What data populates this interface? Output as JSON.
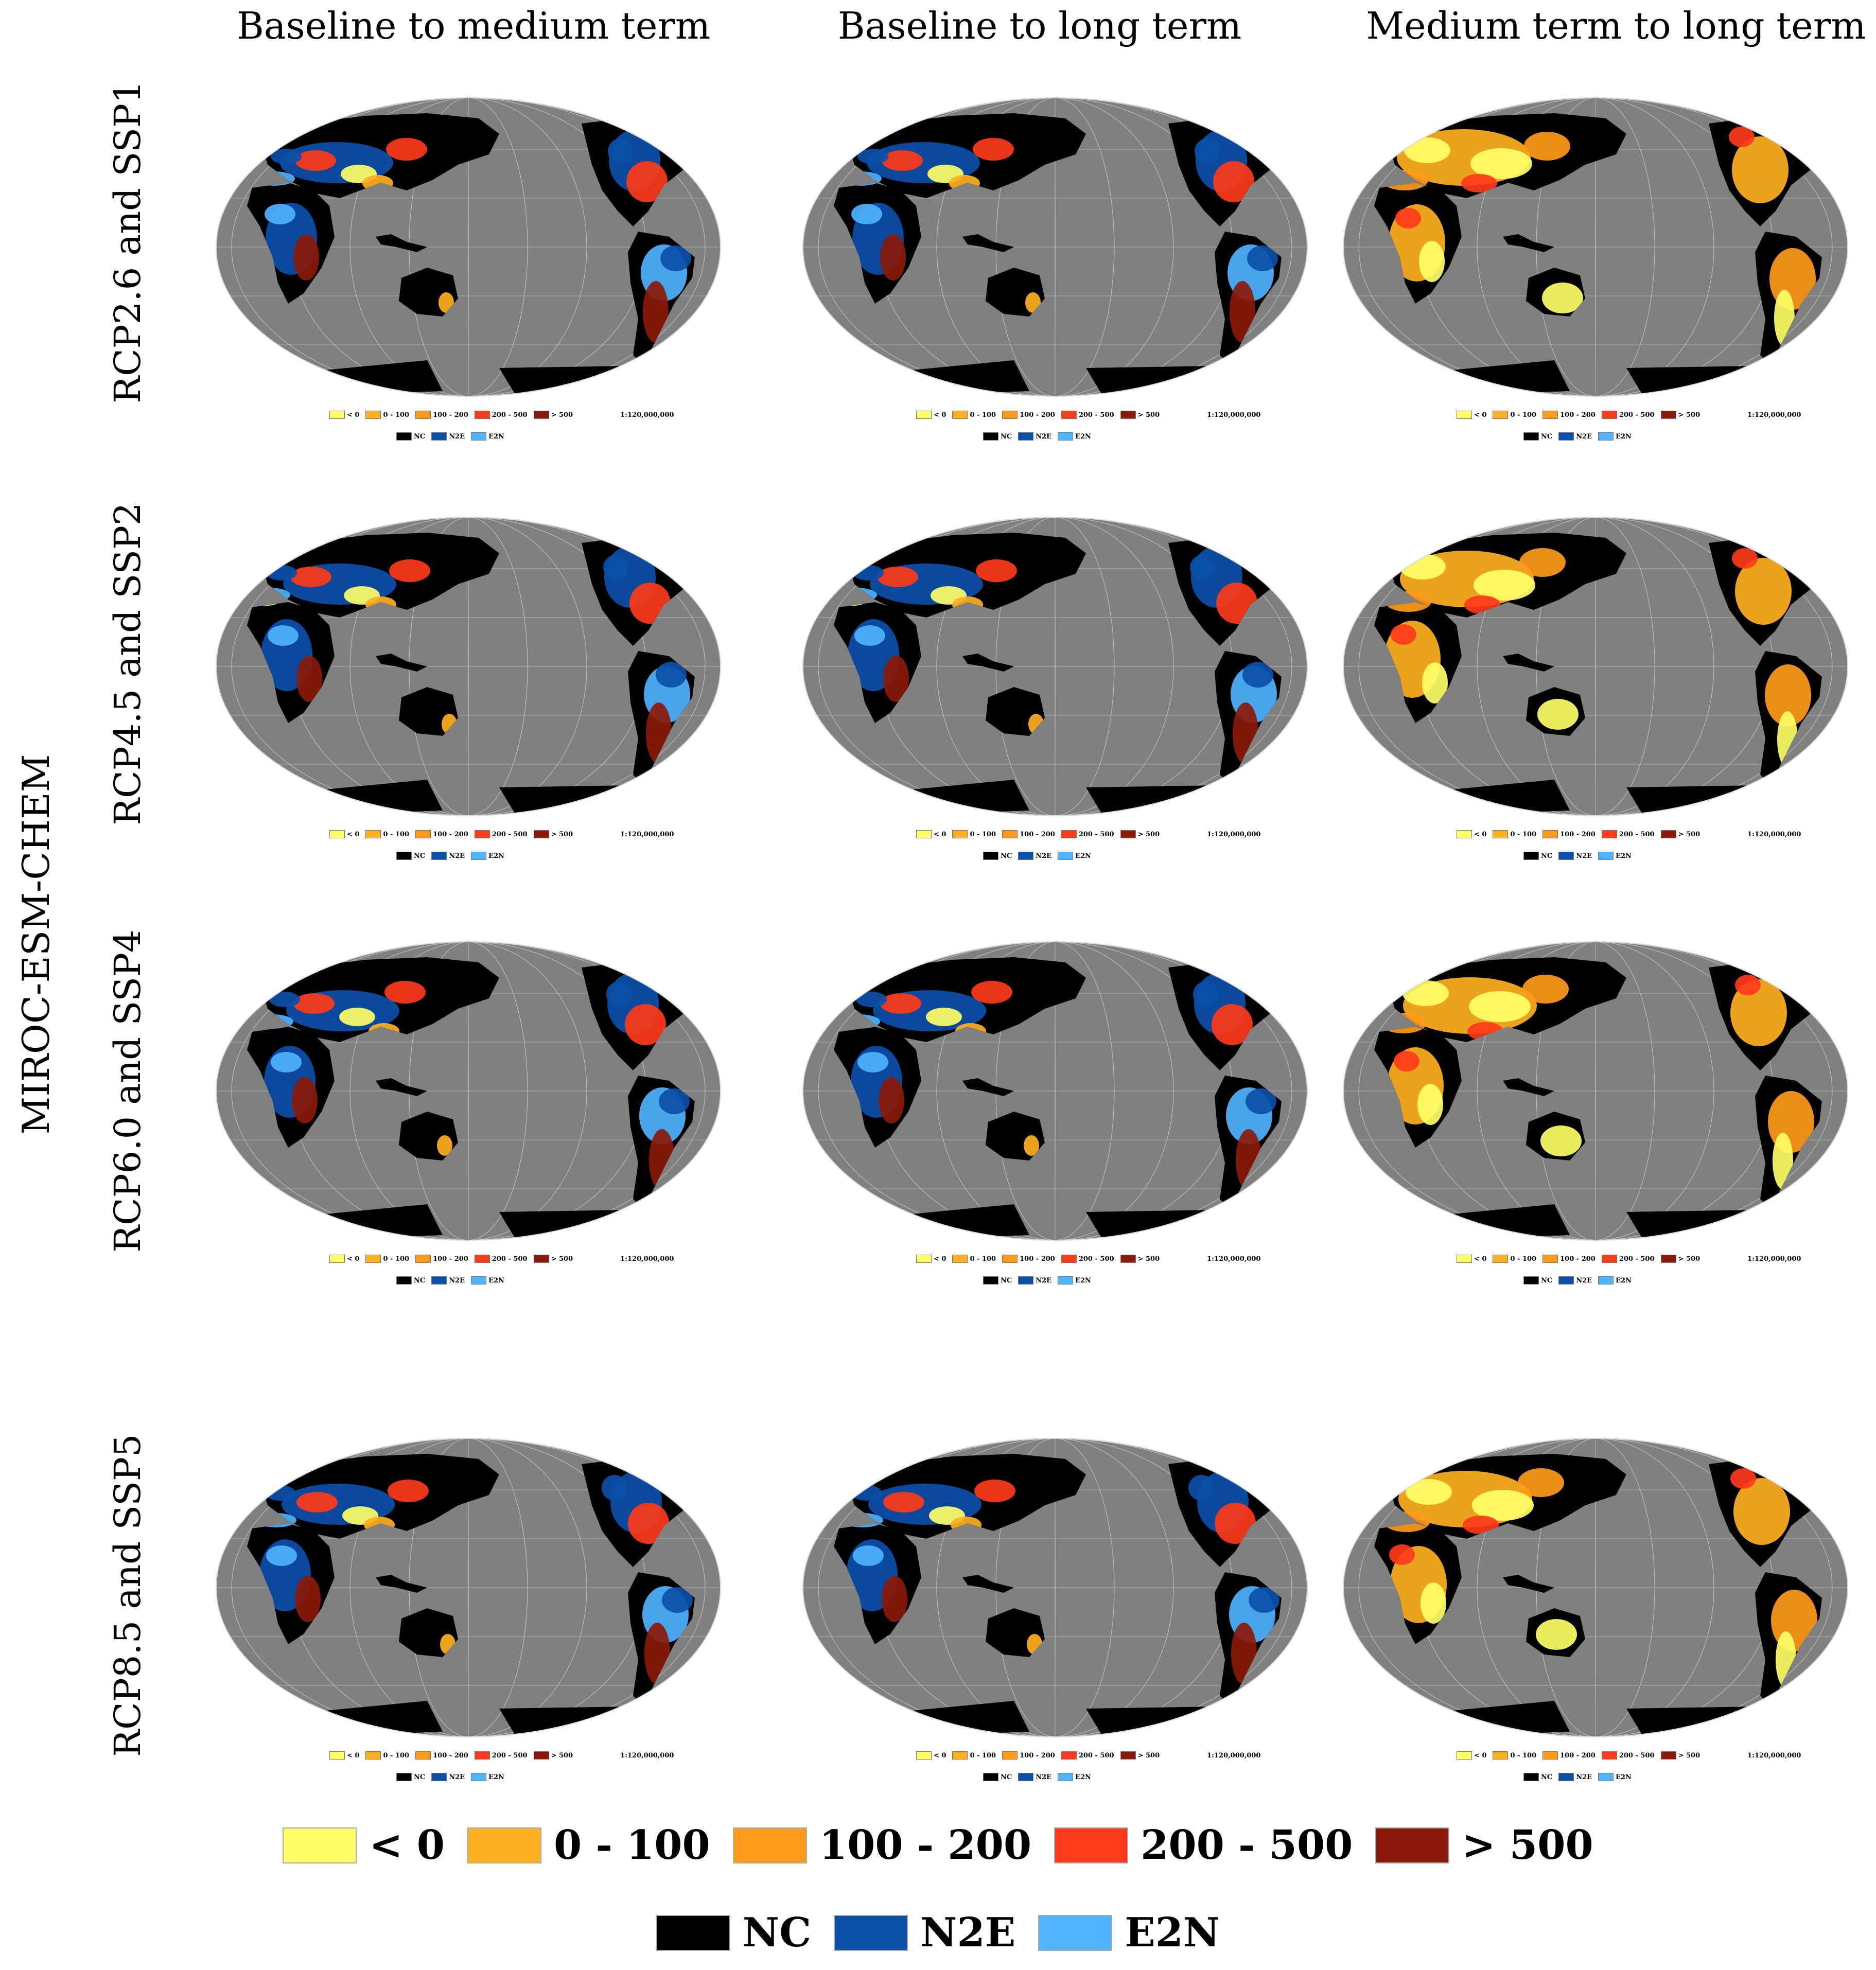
{
  "columns": [
    "Baseline to medium term",
    "Baseline to long term",
    "Medium term to long term"
  ],
  "rows": [
    "RCP2.6 and SSP1",
    "RCP4.5 and SSP2",
    "RCP6.0 and SSP4",
    "RCP8.5 and SSP5"
  ],
  "model": "MIROC-ESM-CHEM",
  "legend_change": [
    {
      "label": "< 0",
      "color": "#ffff66"
    },
    {
      "label": "0 - 100",
      "color": "#ffb020"
    },
    {
      "label": "100 - 200",
      "color": "#ff9a1a"
    },
    {
      "label": "200 - 500",
      "color": "#ff3a1a"
    },
    {
      "label": "> 500",
      "color": "#8b1a0a"
    }
  ],
  "legend_class": [
    {
      "label": "NC",
      "color": "#000000"
    },
    {
      "label": "N2E",
      "color": "#0b4fa8"
    },
    {
      "label": "E2N",
      "color": "#4fb3ff"
    }
  ],
  "scale_text": "1:120,000,000",
  "colors": {
    "ocean": "#808080",
    "grid": "#cfcfcf"
  },
  "map_dominant_class": [
    [
      "mixed",
      "mixed",
      "change"
    ],
    [
      "mixed",
      "mixed",
      "change"
    ],
    [
      "mixed",
      "mixed",
      "change"
    ],
    [
      "mixed",
      "mixed",
      "change"
    ]
  ]
}
